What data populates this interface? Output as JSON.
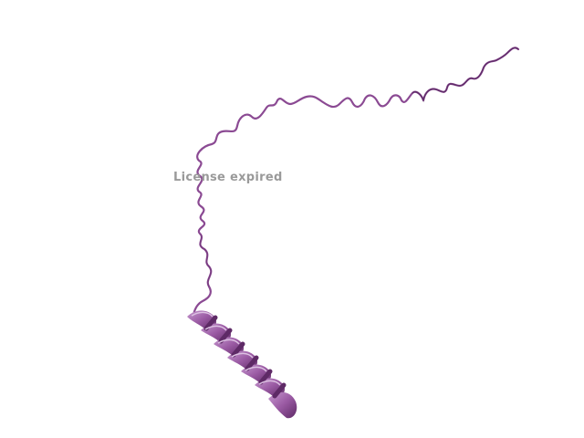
{
  "watermark": {
    "text": "License expired"
  },
  "structure": {
    "representation": "cartoon",
    "colors": {
      "ribbon": "#8b4a93",
      "ribbon_dark": "#4a1f52",
      "helix_light": "#b884c0",
      "helix_mid": "#9a5aa3",
      "helix_dark": "#5e2a66"
    },
    "features": [
      "random-coil",
      "alpha-helix"
    ]
  }
}
